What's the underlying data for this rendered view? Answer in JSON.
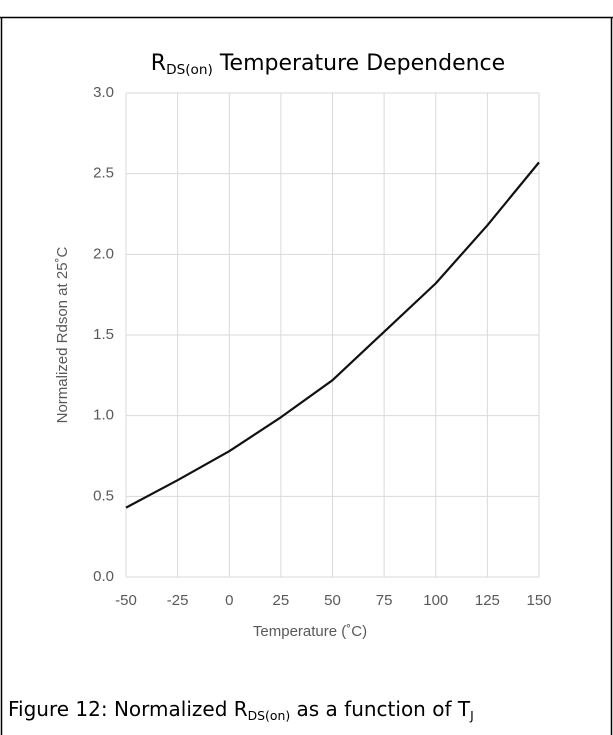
{
  "chart_data": {
    "type": "line",
    "title": {
      "main": "R",
      "sub": "DS(on)",
      "rest": " Temperature Dependence"
    },
    "x_label": "Temperature (˚C)",
    "y_label": "Normalized Rdson at 25˚C",
    "x": [
      -50,
      -25,
      0,
      25,
      50,
      75,
      100,
      125,
      150
    ],
    "series": [
      {
        "name": "Rdson",
        "color": "#111111",
        "values": [
          0.43,
          0.6,
          0.78,
          0.99,
          1.22,
          1.52,
          1.82,
          2.18,
          2.57
        ]
      }
    ],
    "xlim": [
      -50,
      150
    ],
    "xticks": [
      -50,
      -25,
      0,
      25,
      50,
      75,
      100,
      125,
      150
    ],
    "ylim": [
      0,
      3
    ],
    "yticks": [
      {
        "value": 0,
        "label": "0.0"
      },
      0.5,
      {
        "value": 1,
        "label": "1.0"
      },
      1.5,
      {
        "value": 2,
        "label": "2.0"
      },
      2.5,
      {
        "value": 3,
        "label": "3.0"
      }
    ],
    "grid": true
  },
  "caption": {
    "parts": [
      "Figure 12: Normalized R",
      "DS(on)",
      " as a function of T",
      "J"
    ]
  }
}
